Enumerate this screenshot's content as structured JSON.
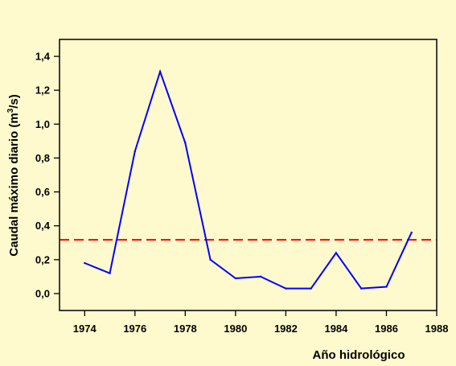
{
  "chart_data": {
    "type": "line",
    "xlabel": "Año hidrológico",
    "ylabel_main": "Caudal máximo diario (m",
    "ylabel_sup": "3",
    "ylabel_tail": "/s)",
    "xlim": [
      1973,
      1988
    ],
    "ylim": [
      -0.1,
      1.5
    ],
    "x_ticks": [
      1974,
      1976,
      1978,
      1980,
      1982,
      1984,
      1986,
      1988
    ],
    "x_tick_labels": [
      "1974",
      "1976",
      "1978",
      "1980",
      "1982",
      "1984",
      "1986",
      "1988"
    ],
    "y_ticks": [
      0.0,
      0.2,
      0.4,
      0.6,
      0.8,
      1.0,
      1.2,
      1.4
    ],
    "y_tick_labels": [
      "0,0",
      "0,2",
      "0,4",
      "0,6",
      "0,8",
      "1,0",
      "1,2",
      "1,4"
    ],
    "series": [
      {
        "color": "#0000FF",
        "x": [
          1974,
          1975,
          1976,
          1977,
          1978,
          1979,
          1980,
          1981,
          1982,
          1983,
          1984,
          1985,
          1986,
          1987
        ],
        "y": [
          0.18,
          0.12,
          0.84,
          1.31,
          0.89,
          0.2,
          0.09,
          0.1,
          0.03,
          0.03,
          0.24,
          0.03,
          0.04,
          0.36
        ]
      }
    ],
    "reference_line": {
      "y": 0.317,
      "color": "#FF0000",
      "style": "dashed"
    },
    "grid": false,
    "legend": "none"
  }
}
